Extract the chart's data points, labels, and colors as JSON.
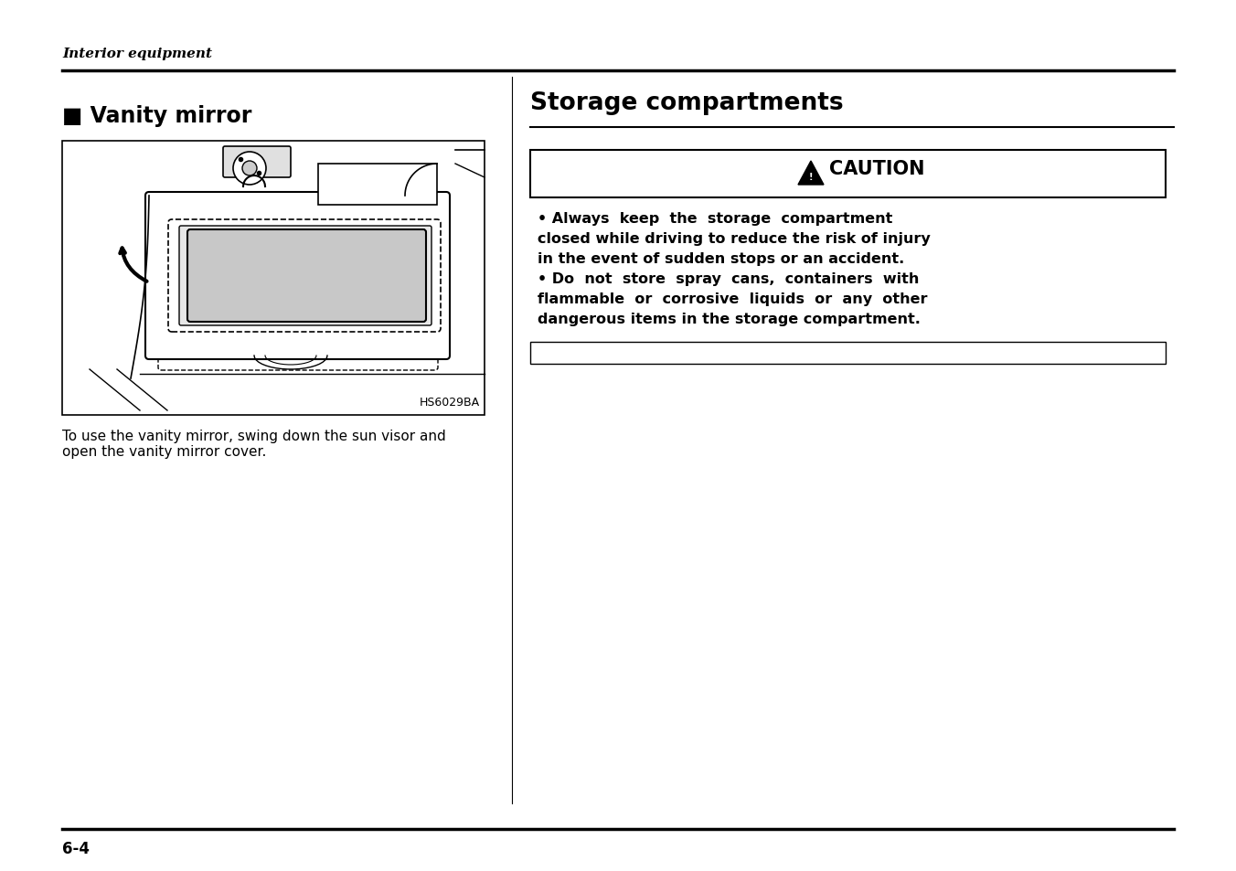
{
  "bg_color": "#ffffff",
  "header_italic": "Interior equipment",
  "title_left": "■ Vanity mirror",
  "title_right": "Storage compartments",
  "image_caption": "HS6029BA",
  "body_text_left": "To use the vanity mirror, swing down the sun visor and\nopen the vanity mirror cover.",
  "caution_line1": "• Always  keep  the  storage  compartment",
  "caution_line2": "closed while driving to reduce the risk of injury",
  "caution_line3": "in the event of sudden stops or an accident.",
  "caution_line4": "• Do  not  store  spray  cans,  containers  with",
  "caution_line5": "flammable  or  corrosive  liquids  or  any  other",
  "caution_line6": "dangerous items in the storage compartment.",
  "page_number": "6-4",
  "divider_color": "#000000",
  "text_color": "#000000",
  "bg_color_white": "#ffffff",
  "gray_mirror": "#c8c8c8",
  "light_gray": "#e8e8e8"
}
